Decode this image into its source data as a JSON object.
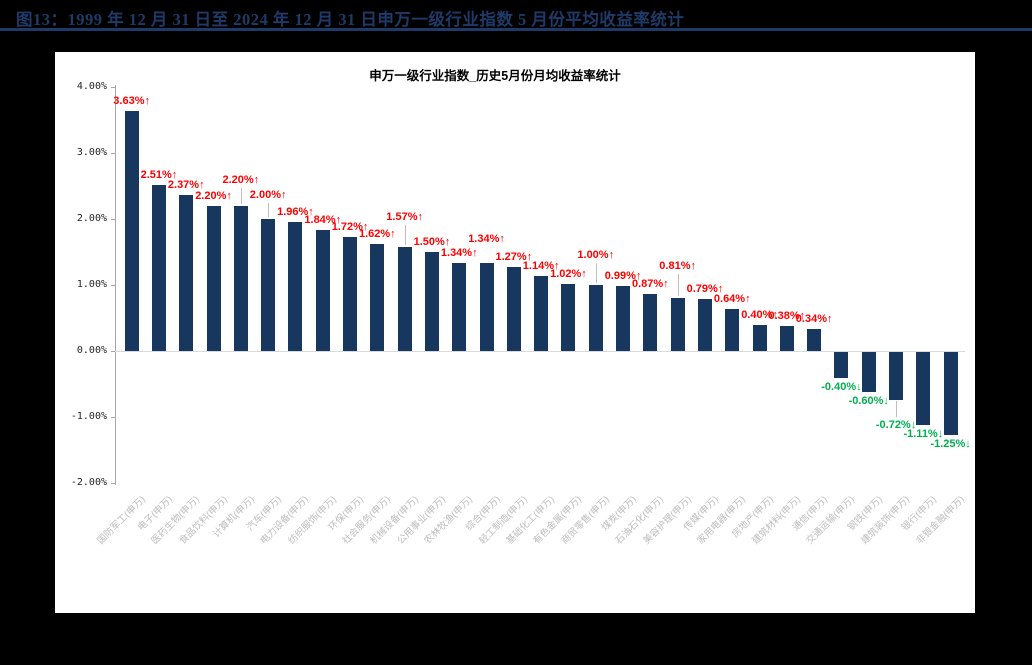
{
  "page": {
    "figure_title": "图13：1999 年 12 月 31 日至 2024 年 12 月 31 日申万一级行业指数 5 月份平均收益率统计"
  },
  "chart_data": {
    "type": "bar",
    "title": "申万一级行业指数_历史5月份月均收益率统计",
    "ylabel": "",
    "xlabel": "",
    "unit": "%",
    "ylim": [
      -2.0,
      4.0
    ],
    "y_ticks": [
      "4.00%",
      "3.00%",
      "2.00%",
      "1.00%",
      "0.00%",
      "-1.00%",
      "-2.00%"
    ],
    "grid": "horizontal zero-line only",
    "legend_position": "none",
    "categories": [
      "国防军工(申万)",
      "电子(申万)",
      "医药生物(申万)",
      "食品饮料(申万)",
      "计算机(申万)",
      "汽车(申万)",
      "电力设备(申万)",
      "纺织服饰(申万)",
      "环保(申万)",
      "社会服务(申万)",
      "机械设备(申万)",
      "公用事业(申万)",
      "农林牧渔(申万)",
      "综合(申万)",
      "轻工制造(申万)",
      "基础化工(申万)",
      "有色金属(申万)",
      "商贸零售(申万)",
      "煤炭(申万)",
      "石油石化(申万)",
      "美容护理(申万)",
      "传媒(申万)",
      "家用电器(申万)",
      "房地产(申万)",
      "建筑材料(申万)",
      "通信(申万)",
      "交通运输(申万)",
      "钢铁(申万)",
      "建筑装饰(申万)",
      "银行(申万)",
      "非银金融(申万)"
    ],
    "values": [
      3.63,
      2.51,
      2.37,
      2.2,
      2.2,
      2.0,
      1.96,
      1.84,
      1.72,
      1.62,
      1.57,
      1.5,
      1.34,
      1.34,
      1.27,
      1.14,
      1.02,
      1.0,
      0.99,
      0.87,
      0.81,
      0.79,
      0.64,
      0.4,
      0.38,
      0.34,
      -0.4,
      -0.6,
      -0.72,
      -1.11,
      -1.25
    ],
    "point_labels": [
      "3.63%↑",
      "2.51%↑",
      "2.37%↑",
      "2.20%↑",
      "2.20%↑",
      "2.00%↑",
      "1.96%↑",
      "1.84%↑",
      "1.72%↑",
      "1.62%↑",
      "1.57%↑",
      "1.50%↑",
      "1.34%↑",
      "1.34%↑",
      "1.27%↑",
      "1.14%↑",
      "1.02%↑",
      "1.00%↑",
      "0.99%↑",
      "0.87%↑",
      "0.81%↑",
      "0.79%↑",
      "0.64%↑",
      "0.40%↑",
      "0.38%↑",
      "0.34%↑",
      "-0.40%↓",
      "-0.60%↓",
      "-0.72%↓",
      "-1.11%↓",
      "-1.25%↓"
    ],
    "colors": {
      "bar": "#17375e",
      "positive_label": "#ff0000",
      "negative_label": "#00b050",
      "page_background": "#000000",
      "panel_background": "#ffffff",
      "figure_title": "#1f3a68",
      "axis_text": "#262626",
      "category_text": "#bdbdbd"
    },
    "layout_hints": {
      "raised_label_offsets": {
        "4": 16,
        "5": 14,
        "10": 20,
        "13": 14,
        "17": 20,
        "20": 22,
        "28": 16
      },
      "leader_line_indices": [
        4,
        5,
        10,
        17,
        20,
        28
      ]
    }
  }
}
